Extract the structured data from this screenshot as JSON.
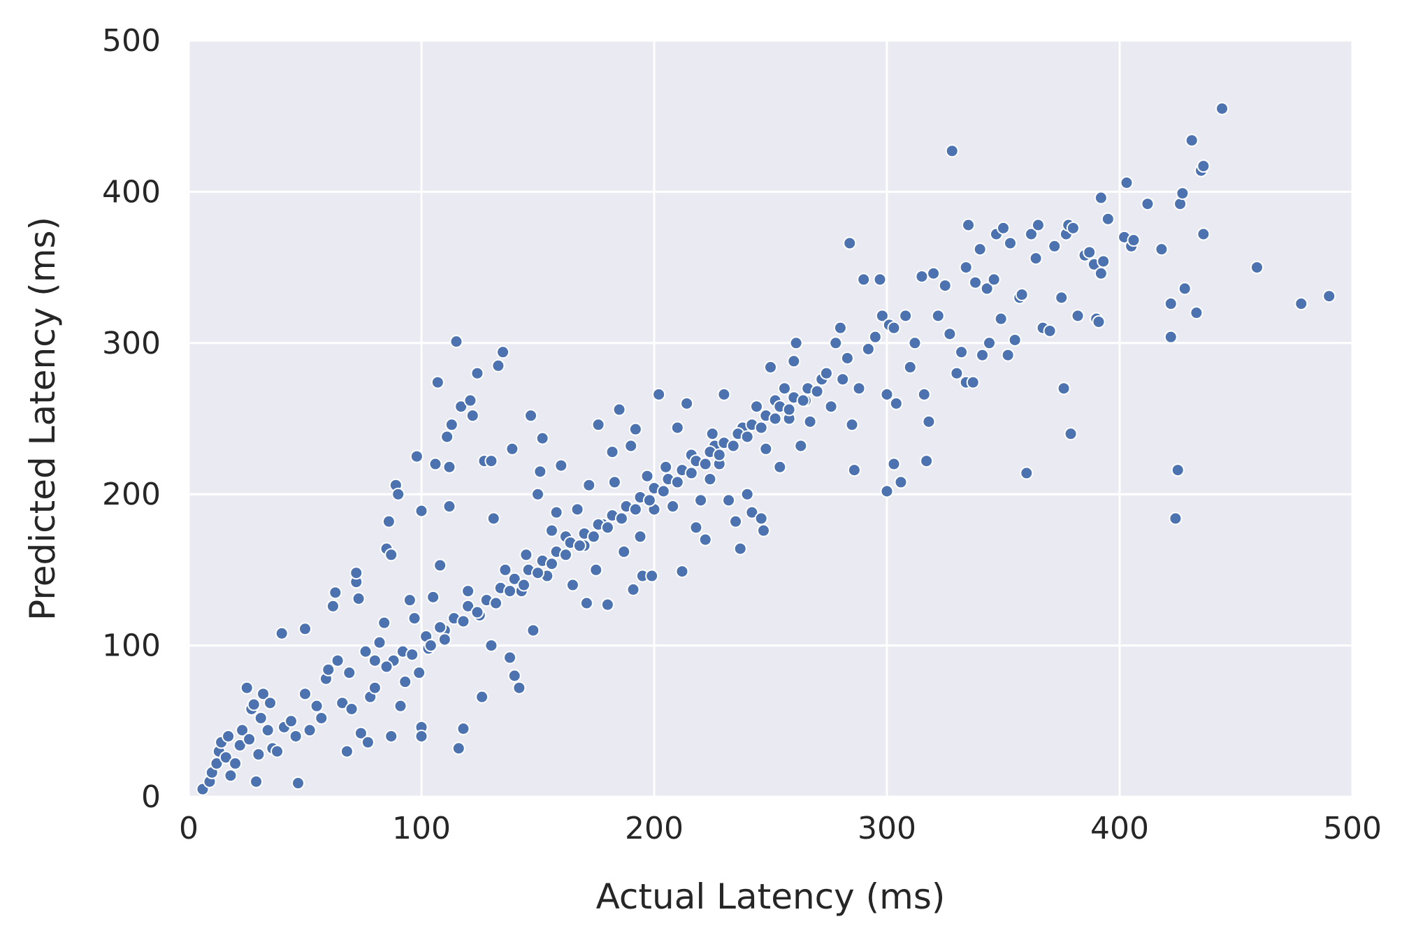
{
  "chart_data": {
    "type": "scatter",
    "title": "",
    "xlabel": "Actual Latency (ms)",
    "ylabel": "Predicted Latency (ms)",
    "xlim": [
      0,
      500
    ],
    "ylim": [
      0,
      500
    ],
    "xticks": [
      "0",
      "100",
      "200",
      "300",
      "400",
      "500"
    ],
    "yticks": [
      "0",
      "100",
      "200",
      "300",
      "400",
      "500"
    ],
    "grid": true,
    "legend": "none",
    "series": [
      {
        "color": "#4c72b0",
        "edge_color": "#ffffff",
        "points": [
          [
            6,
            5
          ],
          [
            9,
            10
          ],
          [
            10,
            16
          ],
          [
            12,
            22
          ],
          [
            13,
            30
          ],
          [
            14,
            36
          ],
          [
            16,
            26
          ],
          [
            17,
            40
          ],
          [
            18,
            14
          ],
          [
            20,
            22
          ],
          [
            22,
            34
          ],
          [
            23,
            44
          ],
          [
            25,
            72
          ],
          [
            26,
            38
          ],
          [
            27,
            58
          ],
          [
            28,
            61
          ],
          [
            29,
            10
          ],
          [
            30,
            28
          ],
          [
            31,
            52
          ],
          [
            32,
            68
          ],
          [
            34,
            44
          ],
          [
            35,
            62
          ],
          [
            36,
            32
          ],
          [
            38,
            30
          ],
          [
            40,
            108
          ],
          [
            41,
            46
          ],
          [
            44,
            50
          ],
          [
            46,
            40
          ],
          [
            47,
            9
          ],
          [
            50,
            111
          ],
          [
            50,
            68
          ],
          [
            52,
            44
          ],
          [
            55,
            60
          ],
          [
            57,
            52
          ],
          [
            59,
            78
          ],
          [
            60,
            84
          ],
          [
            62,
            126
          ],
          [
            63,
            135
          ],
          [
            64,
            90
          ],
          [
            66,
            62
          ],
          [
            68,
            30
          ],
          [
            69,
            82
          ],
          [
            70,
            58
          ],
          [
            72,
            142
          ],
          [
            72,
            148
          ],
          [
            73,
            131
          ],
          [
            74,
            42
          ],
          [
            76,
            96
          ],
          [
            77,
            36
          ],
          [
            78,
            66
          ],
          [
            80,
            72
          ],
          [
            82,
            102
          ],
          [
            84,
            115
          ],
          [
            85,
            164
          ],
          [
            86,
            182
          ],
          [
            87,
            160
          ],
          [
            87,
            40
          ],
          [
            88,
            90
          ],
          [
            89,
            206
          ],
          [
            90,
            200
          ],
          [
            91,
            60
          ],
          [
            93,
            76
          ],
          [
            95,
            130
          ],
          [
            97,
            118
          ],
          [
            98,
            225
          ],
          [
            99,
            82
          ],
          [
            100,
            189
          ],
          [
            100,
            46
          ],
          [
            100,
            40
          ],
          [
            103,
            98
          ],
          [
            105,
            132
          ],
          [
            106,
            220
          ],
          [
            107,
            274
          ],
          [
            108,
            153
          ],
          [
            110,
            110
          ],
          [
            111,
            238
          ],
          [
            112,
            192
          ],
          [
            112,
            218
          ],
          [
            113,
            246
          ],
          [
            115,
            301
          ],
          [
            116,
            32
          ],
          [
            117,
            258
          ],
          [
            118,
            45
          ],
          [
            120,
            136
          ],
          [
            121,
            262
          ],
          [
            122,
            252
          ],
          [
            124,
            280
          ],
          [
            125,
            120
          ],
          [
            126,
            66
          ],
          [
            127,
            222
          ],
          [
            130,
            222
          ],
          [
            130,
            100
          ],
          [
            131,
            184
          ],
          [
            133,
            285
          ],
          [
            135,
            294
          ],
          [
            136,
            150
          ],
          [
            138,
            92
          ],
          [
            139,
            230
          ],
          [
            140,
            80
          ],
          [
            142,
            72
          ],
          [
            143,
            136
          ],
          [
            145,
            160
          ],
          [
            147,
            252
          ],
          [
            148,
            110
          ],
          [
            150,
            200
          ],
          [
            151,
            215
          ],
          [
            152,
            237
          ],
          [
            154,
            146
          ],
          [
            156,
            176
          ],
          [
            158,
            188
          ],
          [
            160,
            219
          ],
          [
            162,
            172
          ],
          [
            165,
            140
          ],
          [
            167,
            190
          ],
          [
            170,
            166
          ],
          [
            171,
            128
          ],
          [
            172,
            206
          ],
          [
            175,
            150
          ],
          [
            176,
            246
          ],
          [
            178,
            180
          ],
          [
            180,
            127
          ],
          [
            182,
            228
          ],
          [
            183,
            208
          ],
          [
            185,
            256
          ],
          [
            187,
            162
          ],
          [
            190,
            232
          ],
          [
            191,
            137
          ],
          [
            192,
            243
          ],
          [
            194,
            172
          ],
          [
            195,
            146
          ],
          [
            197,
            212
          ],
          [
            199,
            146
          ],
          [
            200,
            190
          ],
          [
            202,
            266
          ],
          [
            205,
            218
          ],
          [
            208,
            192
          ],
          [
            210,
            244
          ],
          [
            212,
            149
          ],
          [
            214,
            260
          ],
          [
            216,
            226
          ],
          [
            218,
            178
          ],
          [
            220,
            196
          ],
          [
            222,
            170
          ],
          [
            224,
            210
          ],
          [
            225,
            240
          ],
          [
            226,
            232
          ],
          [
            228,
            220
          ],
          [
            230,
            266
          ],
          [
            232,
            196
          ],
          [
            235,
            182
          ],
          [
            237,
            164
          ],
          [
            238,
            244
          ],
          [
            240,
            200
          ],
          [
            242,
            188
          ],
          [
            244,
            258
          ],
          [
            246,
            184
          ],
          [
            247,
            176
          ],
          [
            248,
            230
          ],
          [
            250,
            284
          ],
          [
            252,
            262
          ],
          [
            254,
            218
          ],
          [
            256,
            270
          ],
          [
            258,
            250
          ],
          [
            260,
            288
          ],
          [
            261,
            300
          ],
          [
            263,
            232
          ],
          [
            265,
            262
          ],
          [
            267,
            248
          ],
          [
            270,
            268
          ],
          [
            272,
            276
          ],
          [
            274,
            280
          ],
          [
            276,
            258
          ],
          [
            278,
            300
          ],
          [
            280,
            310
          ],
          [
            281,
            276
          ],
          [
            283,
            290
          ],
          [
            284,
            366
          ],
          [
            285,
            246
          ],
          [
            286,
            216
          ],
          [
            288,
            270
          ],
          [
            290,
            342
          ],
          [
            292,
            296
          ],
          [
            295,
            304
          ],
          [
            297,
            342
          ],
          [
            298,
            318
          ],
          [
            300,
            202
          ],
          [
            300,
            266
          ],
          [
            301,
            312
          ],
          [
            303,
            310
          ],
          [
            303,
            220
          ],
          [
            304,
            260
          ],
          [
            306,
            208
          ],
          [
            308,
            318
          ],
          [
            310,
            284
          ],
          [
            312,
            300
          ],
          [
            315,
            344
          ],
          [
            316,
            266
          ],
          [
            317,
            222
          ],
          [
            318,
            248
          ],
          [
            320,
            346
          ],
          [
            322,
            318
          ],
          [
            325,
            338
          ],
          [
            327,
            306
          ],
          [
            328,
            427
          ],
          [
            330,
            280
          ],
          [
            332,
            294
          ],
          [
            334,
            274
          ],
          [
            334,
            350
          ],
          [
            335,
            378
          ],
          [
            337,
            274
          ],
          [
            338,
            340
          ],
          [
            340,
            362
          ],
          [
            341,
            292
          ],
          [
            343,
            336
          ],
          [
            344,
            300
          ],
          [
            346,
            342
          ],
          [
            347,
            372
          ],
          [
            349,
            316
          ],
          [
            350,
            376
          ],
          [
            352,
            292
          ],
          [
            353,
            366
          ],
          [
            355,
            302
          ],
          [
            357,
            330
          ],
          [
            358,
            332
          ],
          [
            360,
            214
          ],
          [
            362,
            372
          ],
          [
            364,
            356
          ],
          [
            365,
            378
          ],
          [
            367,
            310
          ],
          [
            370,
            308
          ],
          [
            372,
            364
          ],
          [
            375,
            330
          ],
          [
            376,
            270
          ],
          [
            377,
            372
          ],
          [
            378,
            378
          ],
          [
            379,
            240
          ],
          [
            380,
            376
          ],
          [
            382,
            318
          ],
          [
            385,
            358
          ],
          [
            387,
            360
          ],
          [
            389,
            352
          ],
          [
            390,
            316
          ],
          [
            391,
            314
          ],
          [
            392,
            396
          ],
          [
            392,
            346
          ],
          [
            393,
            354
          ],
          [
            395,
            382
          ],
          [
            402,
            370
          ],
          [
            403,
            406
          ],
          [
            405,
            364
          ],
          [
            406,
            368
          ],
          [
            412,
            392
          ],
          [
            418,
            362
          ],
          [
            422,
            326
          ],
          [
            422,
            304
          ],
          [
            424,
            184
          ],
          [
            425,
            216
          ],
          [
            426,
            392
          ],
          [
            427,
            399
          ],
          [
            428,
            336
          ],
          [
            431,
            434
          ],
          [
            433,
            320
          ],
          [
            435,
            414
          ],
          [
            436,
            417
          ],
          [
            436,
            372
          ],
          [
            444,
            455
          ],
          [
            459,
            350
          ],
          [
            478,
            326
          ],
          [
            490,
            331
          ],
          [
            80,
            90
          ],
          [
            85,
            86
          ],
          [
            92,
            96
          ],
          [
            96,
            94
          ],
          [
            102,
            106
          ],
          [
            104,
            100
          ],
          [
            108,
            112
          ],
          [
            110,
            104
          ],
          [
            114,
            118
          ],
          [
            118,
            116
          ],
          [
            120,
            126
          ],
          [
            124,
            122
          ],
          [
            128,
            130
          ],
          [
            132,
            128
          ],
          [
            134,
            138
          ],
          [
            138,
            136
          ],
          [
            140,
            144
          ],
          [
            144,
            140
          ],
          [
            146,
            150
          ],
          [
            150,
            148
          ],
          [
            152,
            156
          ],
          [
            156,
            154
          ],
          [
            158,
            162
          ],
          [
            162,
            160
          ],
          [
            164,
            168
          ],
          [
            168,
            166
          ],
          [
            170,
            174
          ],
          [
            174,
            172
          ],
          [
            176,
            180
          ],
          [
            180,
            178
          ],
          [
            182,
            186
          ],
          [
            186,
            184
          ],
          [
            188,
            192
          ],
          [
            192,
            190
          ],
          [
            194,
            198
          ],
          [
            198,
            196
          ],
          [
            200,
            204
          ],
          [
            204,
            202
          ],
          [
            206,
            210
          ],
          [
            210,
            208
          ],
          [
            212,
            216
          ],
          [
            216,
            214
          ],
          [
            218,
            222
          ],
          [
            222,
            220
          ],
          [
            224,
            228
          ],
          [
            228,
            226
          ],
          [
            230,
            234
          ],
          [
            234,
            232
          ],
          [
            236,
            240
          ],
          [
            240,
            238
          ],
          [
            242,
            246
          ],
          [
            246,
            244
          ],
          [
            248,
            252
          ],
          [
            252,
            250
          ],
          [
            254,
            258
          ],
          [
            258,
            256
          ],
          [
            260,
            264
          ],
          [
            264,
            262
          ],
          [
            266,
            270
          ],
          [
            270,
            268
          ]
        ]
      }
    ]
  }
}
